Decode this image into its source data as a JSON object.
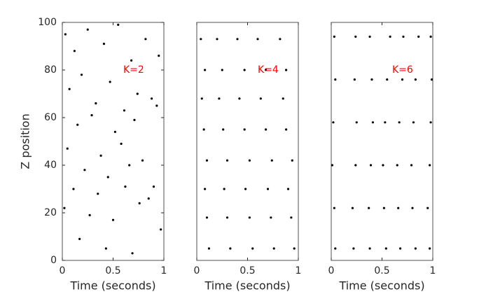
{
  "chart_data": [
    {
      "type": "scatter",
      "color": "#000000",
      "xlabel": "Time (seconds)",
      "ylabel": "Z position",
      "xlim": [
        0,
        1
      ],
      "ylim": [
        0,
        100
      ],
      "xticks": [
        0,
        0.5,
        1
      ],
      "yticks": [
        0,
        20,
        40,
        60,
        80,
        100
      ],
      "annotation": {
        "text": "K=2",
        "x": 0.6,
        "y": 80,
        "color": "#ff0000"
      },
      "x": [
        0.03,
        0.12,
        0.25,
        0.41,
        0.55,
        0.68,
        0.82,
        0.95,
        0.07,
        0.19,
        0.33,
        0.47,
        0.61,
        0.74,
        0.88,
        0.15,
        0.29,
        0.52,
        0.71,
        0.93,
        0.05,
        0.38,
        0.58,
        0.79,
        0.22,
        0.45,
        0.66,
        0.9,
        0.11,
        0.35,
        0.62,
        0.85,
        0.02,
        0.27,
        0.5,
        0.76,
        0.97,
        0.17,
        0.43,
        0.69
      ],
      "values": [
        95,
        88,
        97,
        91,
        99,
        84,
        93,
        86,
        72,
        78,
        66,
        75,
        63,
        70,
        68,
        57,
        61,
        54,
        59,
        65,
        47,
        44,
        49,
        42,
        38,
        35,
        40,
        31,
        30,
        28,
        31,
        26,
        22,
        19,
        17,
        24,
        13,
        9,
        5,
        3
      ]
    },
    {
      "type": "scatter",
      "color": "#000000",
      "xlabel": "Time (seconds)",
      "xlim": [
        0,
        1
      ],
      "ylim": [
        0,
        100
      ],
      "xticks": [
        0,
        0.5,
        1
      ],
      "annotation": {
        "text": "K=4",
        "x": 0.6,
        "y": 80,
        "color": "#ff0000"
      },
      "x": [
        0.12,
        0.1,
        0.08,
        0.1,
        0.07,
        0.05,
        0.08,
        0.04,
        0.33,
        0.3,
        0.27,
        0.3,
        0.26,
        0.22,
        0.25,
        0.2,
        0.55,
        0.52,
        0.48,
        0.52,
        0.47,
        0.42,
        0.47,
        0.4,
        0.76,
        0.73,
        0.7,
        0.74,
        0.68,
        0.63,
        0.68,
        0.6,
        0.96,
        0.93,
        0.9,
        0.94,
        0.88,
        0.85,
        0.88,
        0.82
      ],
      "values": [
        5,
        18,
        30,
        42,
        55,
        68,
        80,
        93,
        5,
        18,
        30,
        42,
        55,
        68,
        80,
        93,
        5,
        18,
        30,
        42,
        55,
        68,
        80,
        93,
        5,
        18,
        30,
        42,
        55,
        68,
        80,
        93,
        5,
        18,
        30,
        42,
        55,
        68,
        80,
        93
      ]
    },
    {
      "type": "scatter",
      "color": "#000000",
      "xlabel": "Time (seconds)",
      "xlim": [
        0,
        1
      ],
      "ylim": [
        0,
        100
      ],
      "xticks": [
        0,
        0.5,
        1
      ],
      "annotation": {
        "text": "K=6",
        "x": 0.6,
        "y": 80,
        "color": "#ff0000"
      },
      "x": [
        0.04,
        0.03,
        0.01,
        0.02,
        0.04,
        0.03,
        0.22,
        0.21,
        0.24,
        0.25,
        0.23,
        0.24,
        0.38,
        0.37,
        0.39,
        0.41,
        0.4,
        0.38,
        0.54,
        0.52,
        0.51,
        0.53,
        0.55,
        0.58,
        0.68,
        0.66,
        0.65,
        0.67,
        0.7,
        0.71,
        0.83,
        0.8,
        0.79,
        0.81,
        0.83,
        0.86,
        0.97,
        0.95,
        0.97,
        0.98,
        0.99,
        0.98
      ],
      "values": [
        5,
        22,
        40,
        58,
        76,
        94,
        5,
        22,
        40,
        58,
        76,
        94,
        5,
        22,
        40,
        58,
        76,
        94,
        5,
        22,
        40,
        58,
        76,
        94,
        5,
        22,
        40,
        58,
        76,
        94,
        5,
        22,
        40,
        58,
        76,
        94,
        5,
        22,
        40,
        58,
        76,
        94
      ]
    }
  ]
}
